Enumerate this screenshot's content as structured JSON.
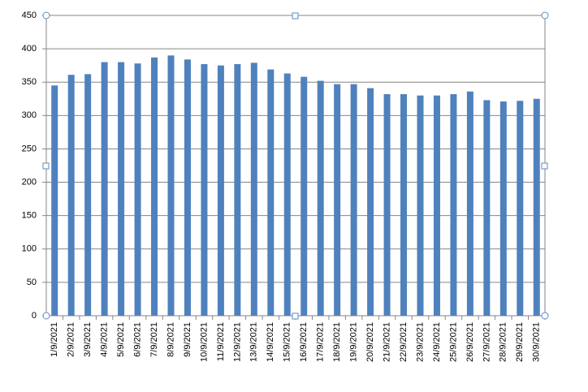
{
  "chart_data": {
    "type": "bar",
    "categories": [
      "1/9/2021",
      "2/9/2021",
      "3/9/2021",
      "4/9/2021",
      "5/9/2021",
      "6/9/2021",
      "7/9/2021",
      "8/9/2021",
      "9/9/2021",
      "10/9/2021",
      "11/9/2021",
      "12/9/2021",
      "13/9/2021",
      "14/9/2021",
      "15/9/2021",
      "16/9/2021",
      "17/9/2021",
      "18/9/2021",
      "19/9/2021",
      "20/9/2021",
      "21/9/2021",
      "22/9/2021",
      "23/9/2021",
      "24/9/2021",
      "25/9/2021",
      "26/9/2021",
      "27/9/2021",
      "28/9/2021",
      "29/9/2021",
      "30/9/2021"
    ],
    "values": [
      345,
      361,
      362,
      380,
      380,
      378,
      387,
      390,
      384,
      377,
      375,
      377,
      379,
      369,
      363,
      358,
      352,
      347,
      347,
      341,
      332,
      332,
      330,
      330,
      332,
      336,
      323,
      321,
      322,
      325
    ],
    "color": "#4f81bd",
    "ylim": [
      0,
      450
    ],
    "yticks": [
      0,
      50,
      100,
      150,
      200,
      250,
      300,
      350,
      400,
      450
    ],
    "grid": true
  }
}
